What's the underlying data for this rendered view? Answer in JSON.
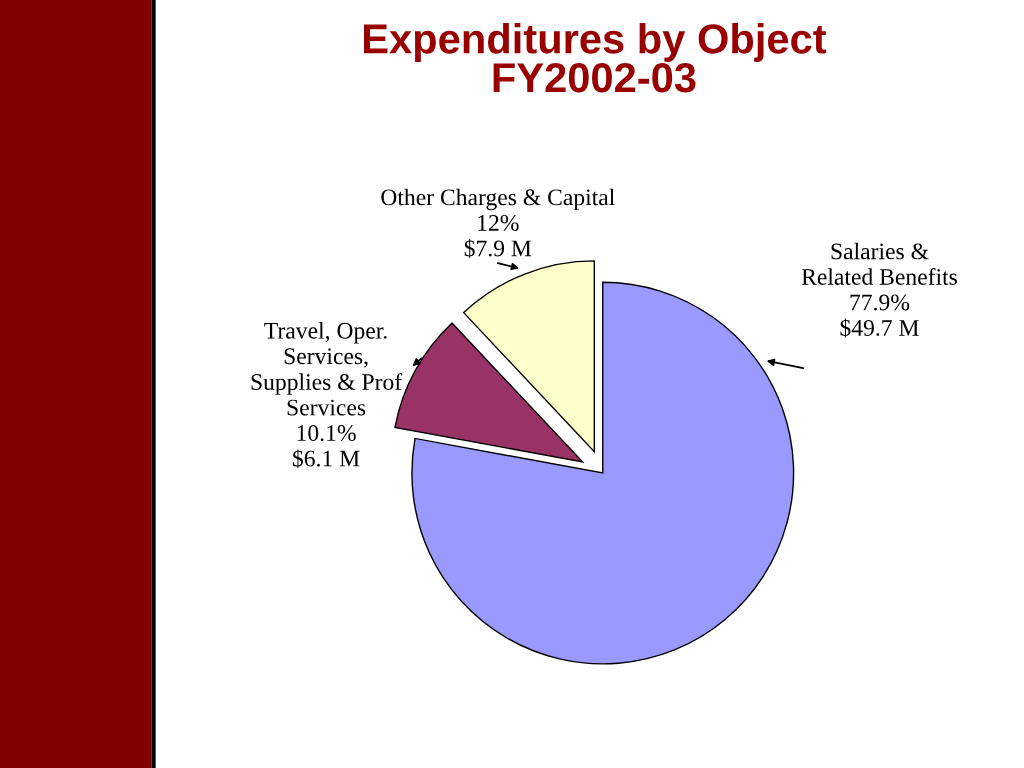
{
  "chart_data": {
    "type": "pie",
    "title": "Expenditures by Object\nFY2002-03",
    "categories": [
      "Salaries &\nRelated Benefits",
      "Travel, Oper.\nServices,\nSupplies & Prof\nServices",
      "Other Charges & Capital"
    ],
    "values": [
      77.9,
      10.1,
      12
    ],
    "value_labels": [
      "77.9%\n$49.7 M",
      "10.1%\n$6.1 M",
      "12%\n$7.9 M"
    ],
    "colors": [
      "#9999ff",
      "#993366",
      "#ffffcc"
    ]
  }
}
